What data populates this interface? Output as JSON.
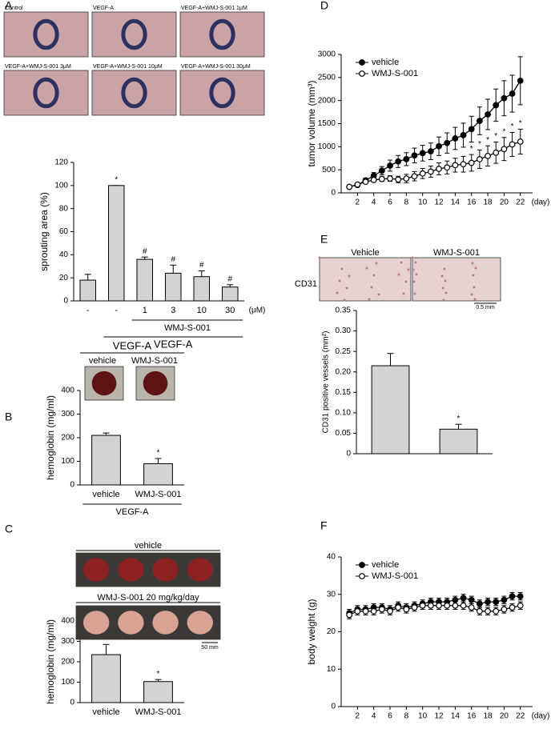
{
  "chart_data": [
    {
      "type": "bar",
      "panel": "A",
      "ylabel": "sprouting area (%)",
      "categories": [
        "-",
        "-",
        "1",
        "3",
        "10",
        "30"
      ],
      "x_unit": "(μM)",
      "values": [
        18,
        100,
        36,
        24,
        21,
        12
      ],
      "errors": [
        5,
        0,
        2,
        7,
        5,
        2
      ],
      "annotations": [
        null,
        "*",
        "#",
        "#",
        "#",
        "#"
      ],
      "groups": [
        {
          "label": "WMJ-S-001",
          "from": 2,
          "to": 5
        },
        {
          "label": "VEGF-A",
          "from": 1,
          "to": 5
        }
      ],
      "color": "#d3d3d3",
      "ylim": [
        0,
        120
      ],
      "yticks": [
        0,
        20,
        40,
        60,
        80,
        100,
        120
      ]
    },
    {
      "type": "bar",
      "panel": "B",
      "ylabel": "hemoglobin (mg/ml)",
      "categories": [
        "vehicle",
        "WMJ-S-001"
      ],
      "values": [
        210,
        90
      ],
      "errors": [
        10,
        22
      ],
      "annotations": [
        null,
        "*"
      ],
      "groups": [
        {
          "label": "VEGF-A",
          "from": 0,
          "to": 1
        }
      ],
      "color": "#d3d3d3",
      "ylim": [
        0,
        400
      ],
      "yticks": [
        0,
        100,
        200,
        300,
        400
      ]
    },
    {
      "type": "bar",
      "panel": "C",
      "ylabel": "hemoglobin (mg/ml)",
      "categories": [
        "vehicle",
        "WMJ-S-001"
      ],
      "values": [
        235,
        103
      ],
      "errors": [
        50,
        10
      ],
      "annotations": [
        null,
        "*"
      ],
      "color": "#d3d3d3",
      "ylim": [
        0,
        400
      ],
      "yticks": [
        0,
        100,
        200,
        300,
        400
      ]
    },
    {
      "type": "line",
      "panel": "D",
      "ylabel": "tumor volume (mm³)",
      "x_unit": "(day)",
      "x": [
        1,
        2,
        3,
        4,
        5,
        6,
        7,
        8,
        9,
        10,
        11,
        12,
        13,
        14,
        15,
        16,
        17,
        18,
        19,
        20,
        21,
        22
      ],
      "series": [
        {
          "name": "vehicle",
          "color": "#000000",
          "marker": "filled",
          "values": [
            130,
            170,
            270,
            370,
            480,
            590,
            680,
            730,
            810,
            860,
            900,
            1010,
            1080,
            1180,
            1250,
            1380,
            1560,
            1700,
            1900,
            2050,
            2150,
            2430
          ],
          "errors": [
            20,
            30,
            50,
            70,
            90,
            120,
            130,
            140,
            160,
            170,
            180,
            200,
            220,
            240,
            260,
            280,
            300,
            330,
            350,
            380,
            400,
            520
          ]
        },
        {
          "name": "WMJ-S-001",
          "color": "#000000",
          "marker": "open",
          "values": [
            130,
            180,
            240,
            280,
            300,
            310,
            290,
            310,
            360,
            420,
            460,
            520,
            550,
            600,
            620,
            650,
            730,
            800,
            870,
            950,
            1050,
            1110
          ],
          "errors": [
            20,
            20,
            30,
            40,
            50,
            60,
            70,
            90,
            100,
            110,
            120,
            130,
            140,
            150,
            170,
            180,
            200,
            220,
            230,
            250,
            260,
            270
          ]
        }
      ],
      "annotations": [
        {
          "text": "*",
          "x": 16
        },
        {
          "text": "*",
          "x": 17
        },
        {
          "text": "*",
          "x": 18
        },
        {
          "text": "*",
          "x": 19
        },
        {
          "text": "*",
          "x": 20
        },
        {
          "text": "*",
          "x": 21
        },
        {
          "text": "*",
          "x": 22
        }
      ],
      "xlim": [
        0,
        23.5
      ],
      "xticks": [
        2,
        4,
        6,
        8,
        10,
        12,
        14,
        16,
        18,
        20,
        22
      ],
      "ylim": [
        0,
        3000
      ],
      "yticks": [
        0,
        500,
        1000,
        1500,
        2000,
        2500,
        3000
      ]
    },
    {
      "type": "bar",
      "panel": "E",
      "ylabel": "CD31 positive vessels (mm²)",
      "categories": [
        null,
        null
      ],
      "values": [
        0.215,
        0.06
      ],
      "errors": [
        0.03,
        0.012
      ],
      "annotations": [
        null,
        "*"
      ],
      "color": "#d3d3d3",
      "ylim": [
        0,
        0.35
      ],
      "yticks": [
        0,
        0.05,
        {
          "value": 0.1,
          "label": "0.10"
        },
        0.15,
        {
          "value": 0.2,
          "label": "0.20"
        },
        0.25,
        {
          "value": 0.3,
          "label": "0.30"
        },
        0.35
      ]
    },
    {
      "type": "line",
      "panel": "F",
      "ylabel": "body weight (g)",
      "x_unit": "(day)",
      "x": [
        1,
        2,
        3,
        4,
        5,
        6,
        7,
        8,
        9,
        10,
        11,
        12,
        13,
        14,
        15,
        16,
        17,
        18,
        19,
        20,
        21,
        22
      ],
      "series": [
        {
          "name": "vehicle",
          "color": "#000000",
          "marker": "filled",
          "values": [
            25,
            26,
            26,
            26.5,
            26.5,
            26,
            27,
            26.5,
            27,
            27.5,
            28,
            28,
            28,
            28.5,
            29,
            28.5,
            27.5,
            28,
            28,
            28.5,
            29.5,
            29.5
          ],
          "errors": [
            1,
            1,
            1,
            1,
            1,
            1,
            1,
            1,
            1,
            1,
            1,
            1,
            1,
            1,
            1,
            1,
            1,
            1,
            1,
            1,
            1,
            1
          ]
        },
        {
          "name": "WMJ-S-001",
          "color": "#000000",
          "marker": "open",
          "values": [
            24.5,
            25.5,
            25.5,
            25.5,
            26,
            25.5,
            26.5,
            26,
            26.5,
            27,
            27,
            27,
            27,
            27,
            27,
            26.5,
            25.5,
            25.5,
            25.5,
            26,
            26.5,
            27
          ],
          "errors": [
            1,
            1,
            1,
            1,
            1,
            1,
            1,
            1,
            1,
            1,
            1,
            1,
            1,
            1,
            1,
            1,
            1,
            1,
            1,
            1,
            1,
            1
          ]
        }
      ],
      "xlim": [
        0,
        23.5
      ],
      "xticks": [
        2,
        4,
        6,
        8,
        10,
        12,
        14,
        16,
        18,
        20,
        22
      ],
      "ylim": [
        0,
        40
      ],
      "yticks": [
        0,
        10,
        20,
        30,
        40
      ]
    }
  ],
  "photos": {
    "A": [
      "Control",
      "VEGF-A",
      "VEGF-A+WMJ-S-001 1μM",
      "VEGF-A+WMJ-S-001 3μM",
      "VEGF-A+WMJ-S-001 10μM",
      "VEGF-A+WMJ-S-001 30μM"
    ],
    "B": {
      "title": "VEGF-A",
      "labels": [
        "vehicle",
        "WMJ-S-001"
      ]
    },
    "C": {
      "labels": [
        "vehicle",
        "WMJ-S-001 20 mg/kg/day"
      ],
      "scale": "50 mm"
    },
    "E": {
      "labels": [
        "Vehicle",
        "WMJ-S-001"
      ],
      "row_label": "CD31",
      "scale": "0.5 mm"
    }
  }
}
